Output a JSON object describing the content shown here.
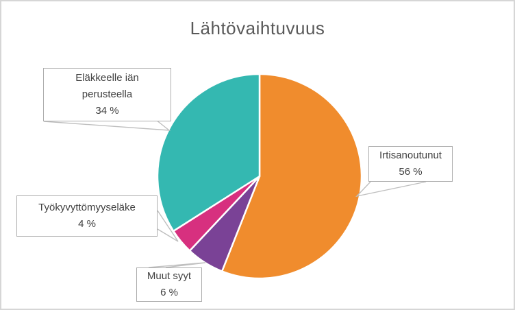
{
  "title": {
    "text": "Lähtövaihtuvuus",
    "color": "#595959"
  },
  "chart_data": {
    "type": "pie",
    "title": "Lähtövaihtuvuus",
    "start_angle_deg": 0,
    "direction": "clockwise",
    "legend": "none",
    "label_style": "callout-boxes-with-leader-lines",
    "categories": [
      "Irtisanoutunut",
      "Muut syyt",
      "Työkyvyttömyyseläke",
      "Eläkkeelle iän perusteella"
    ],
    "values": [
      56,
      6,
      4,
      34
    ],
    "slices": [
      {
        "key": "irtisanoutunut",
        "label": "Irtisanoutunut",
        "value": 56,
        "pct_label": "56 %",
        "color": "#F08C2D"
      },
      {
        "key": "muut-syyt",
        "label": "Muut syyt",
        "value": 6,
        "pct_label": "6 %",
        "color": "#7A4296"
      },
      {
        "key": "tyokyvyttomyyselake",
        "label": "Työkyvyttömyyseläke",
        "value": 4,
        "pct_label": "4 %",
        "color": "#D7307F"
      },
      {
        "key": "elakkeelle-ian-perusteella",
        "label": "Eläkkeelle iän perusteella",
        "value": 34,
        "pct_label": "34 %",
        "color": "#34B8B1"
      }
    ]
  },
  "callouts": [
    {
      "lines": [
        "Eläkkeelle iän",
        "perusteella",
        "34 %"
      ]
    },
    {
      "lines": [
        "Irtisanoutunut",
        "56 %"
      ]
    },
    {
      "lines": [
        "Työkyvyttömyyseläke",
        "4 %"
      ]
    },
    {
      "lines": [
        "Muut syyt",
        "6 %"
      ]
    }
  ],
  "styles": {
    "frame_border_color": "#D6D6D6",
    "label_text_color": "#404040",
    "callout_border_color": "#ACACAC",
    "leader_line_color": "#BFBFBF",
    "slice_border_color": "#FFFFFF"
  }
}
